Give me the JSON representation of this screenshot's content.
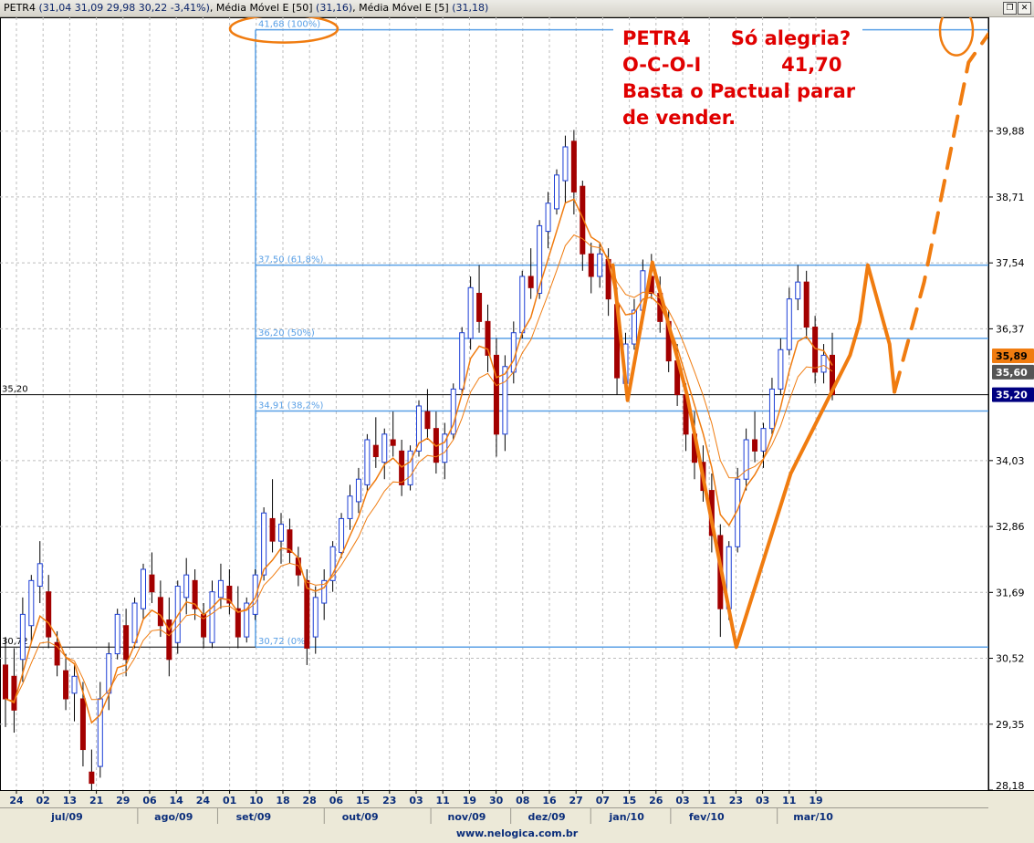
{
  "header": {
    "symbol": "PETR4",
    "quote": "(31,04  31,09  29,98  30,22  -3,41%)",
    "ma1_label": "Média Móvel E [50]",
    "ma1_value": "(31,16)",
    "ma2_label": "Média Móvel E [5]",
    "ma2_value": "(31,18)",
    "restore_icon": "restore-window-icon",
    "close_icon": "close-window-icon"
  },
  "annotation": {
    "lines": [
      "PETR4      Só alegria?",
      "O-C-O-I            41,70",
      "Basta o Pactual parar",
      "de vender."
    ],
    "color": "#e00000"
  },
  "footer": {
    "site": "www.nelogica.com.br"
  },
  "chart_data": {
    "type": "candlestick",
    "ylim": [
      28.18,
      41.9
    ],
    "y_ticks": [
      "39,88",
      "38,71",
      "37,54",
      "36,37",
      "34,03",
      "32,86",
      "31,69",
      "30,52",
      "29,35",
      "28,18"
    ],
    "price_badges": [
      {
        "label": "35,89",
        "bg": "#f07c10",
        "fg": "#000000"
      },
      {
        "label": "35,60",
        "bg": "#555555",
        "fg": "#ffffff"
      },
      {
        "label": "35,20",
        "bg": "#000080",
        "fg": "#ffffff"
      }
    ],
    "left_labels": [
      "35,20",
      "30,72"
    ],
    "x_day_labels": [
      "24",
      "02",
      "13",
      "21",
      "29",
      "06",
      "14",
      "24",
      "01",
      "10",
      "18",
      "28",
      "06",
      "15",
      "23",
      "03",
      "11",
      "19",
      "30",
      "08",
      "16",
      "27",
      "07",
      "15",
      "26",
      "03",
      "11",
      "23",
      "03",
      "11",
      "19"
    ],
    "x_month_labels": [
      "jul/09",
      "ago/09",
      "set/09",
      "out/09",
      "nov/09",
      "dez/09",
      "jan/10",
      "fev/10",
      "mar/10"
    ],
    "horizontal_lines": [
      35.2,
      30.72
    ],
    "fibonacci": {
      "color": "#5aa0e6",
      "levels": [
        {
          "price": 41.68,
          "label": "41,68 (100%)"
        },
        {
          "price": 37.5,
          "label": "37,50 (61,8%)"
        },
        {
          "price": 36.2,
          "label": "36,20 (50%)"
        },
        {
          "price": 34.91,
          "label": "34,91 (38,2%)"
        },
        {
          "price": 30.72,
          "label": "30,72 (0%)"
        }
      ]
    },
    "pattern_lines": [
      {
        "name": "head-and-shoulders-lines",
        "style": "solid",
        "points": [
          [
            0.62,
            37.5
          ],
          [
            0.635,
            35.1
          ],
          [
            0.66,
            37.55
          ],
          [
            0.695,
            35.2
          ],
          [
            0.745,
            30.72
          ],
          [
            0.8,
            33.8
          ],
          [
            0.86,
            35.9
          ],
          [
            0.87,
            36.5
          ],
          [
            0.878,
            37.5
          ],
          [
            0.9,
            36.1
          ],
          [
            0.905,
            35.25
          ]
        ]
      },
      {
        "name": "projection-line",
        "style": "dashed",
        "points": [
          [
            0.905,
            35.25
          ],
          [
            0.935,
            37.2
          ],
          [
            0.98,
            41.1
          ],
          [
            1.0,
            41.6
          ]
        ]
      }
    ],
    "series": [
      {
        "name": "Média Móvel E [50]",
        "color": "#f07c10"
      },
      {
        "name": "Média Móvel E [5]",
        "color": "#f07c10"
      }
    ],
    "ohlc": [
      [
        30.4,
        30.9,
        29.3,
        29.8
      ],
      [
        30.2,
        30.7,
        29.2,
        29.6
      ],
      [
        30.5,
        31.6,
        30.1,
        31.3
      ],
      [
        31.1,
        32.0,
        30.8,
        31.9
      ],
      [
        31.8,
        32.6,
        31.5,
        32.2
      ],
      [
        31.7,
        32.0,
        30.7,
        30.9
      ],
      [
        30.8,
        31.0,
        30.2,
        30.4
      ],
      [
        30.3,
        30.6,
        29.6,
        29.8
      ],
      [
        29.9,
        30.4,
        29.4,
        30.2
      ],
      [
        29.8,
        30.1,
        28.6,
        28.9
      ],
      [
        28.5,
        28.9,
        27.9,
        28.3
      ],
      [
        28.6,
        30.1,
        28.4,
        29.8
      ],
      [
        29.9,
        30.8,
        29.6,
        30.6
      ],
      [
        30.6,
        31.4,
        30.5,
        31.3
      ],
      [
        31.1,
        31.4,
        30.2,
        30.5
      ],
      [
        30.8,
        31.6,
        30.7,
        31.5
      ],
      [
        31.4,
        32.2,
        31.2,
        32.1
      ],
      [
        32.0,
        32.4,
        31.5,
        31.7
      ],
      [
        31.6,
        31.9,
        30.9,
        31.1
      ],
      [
        31.2,
        31.6,
        30.2,
        30.5
      ],
      [
        30.8,
        31.9,
        30.6,
        31.8
      ],
      [
        31.6,
        32.3,
        31.3,
        32.0
      ],
      [
        31.9,
        32.1,
        31.2,
        31.4
      ],
      [
        31.3,
        31.5,
        30.7,
        30.9
      ],
      [
        30.8,
        31.9,
        30.7,
        31.7
      ],
      [
        31.6,
        32.2,
        31.4,
        31.9
      ],
      [
        31.8,
        32.1,
        31.3,
        31.5
      ],
      [
        31.4,
        31.8,
        30.7,
        30.9
      ],
      [
        30.9,
        31.6,
        30.8,
        31.5
      ],
      [
        31.3,
        32.1,
        31.2,
        32.0
      ],
      [
        32.0,
        33.2,
        31.9,
        33.1
      ],
      [
        33.0,
        33.7,
        32.4,
        32.6
      ],
      [
        32.6,
        33.1,
        32.2,
        32.9
      ],
      [
        32.8,
        33.0,
        32.2,
        32.4
      ],
      [
        32.3,
        32.5,
        31.8,
        32.0
      ],
      [
        31.9,
        32.1,
        30.4,
        30.7
      ],
      [
        30.9,
        31.8,
        30.6,
        31.6
      ],
      [
        31.5,
        32.1,
        31.2,
        31.9
      ],
      [
        31.9,
        32.6,
        31.7,
        32.5
      ],
      [
        32.4,
        33.1,
        32.3,
        33.0
      ],
      [
        33.0,
        33.6,
        32.8,
        33.4
      ],
      [
        33.3,
        33.9,
        33.1,
        33.7
      ],
      [
        33.6,
        34.5,
        33.5,
        34.4
      ],
      [
        34.3,
        34.8,
        33.9,
        34.1
      ],
      [
        34.0,
        34.6,
        33.7,
        34.5
      ],
      [
        34.4,
        34.9,
        34.1,
        34.3
      ],
      [
        34.2,
        34.4,
        33.4,
        33.6
      ],
      [
        33.6,
        34.3,
        33.5,
        34.2
      ],
      [
        34.2,
        35.1,
        34.1,
        35.0
      ],
      [
        34.9,
        35.3,
        34.4,
        34.6
      ],
      [
        34.6,
        34.9,
        33.8,
        34.0
      ],
      [
        34.0,
        34.7,
        33.7,
        34.5
      ],
      [
        34.5,
        35.4,
        34.4,
        35.3
      ],
      [
        35.3,
        36.4,
        35.2,
        36.3
      ],
      [
        36.2,
        37.3,
        36.0,
        37.1
      ],
      [
        37.0,
        37.5,
        36.3,
        36.5
      ],
      [
        36.5,
        36.8,
        35.6,
        35.9
      ],
      [
        35.9,
        36.2,
        34.1,
        34.5
      ],
      [
        34.5,
        35.9,
        34.2,
        35.7
      ],
      [
        35.6,
        36.5,
        35.4,
        36.3
      ],
      [
        36.3,
        37.4,
        36.2,
        37.3
      ],
      [
        37.3,
        37.8,
        36.9,
        37.1
      ],
      [
        37.0,
        38.3,
        36.9,
        38.2
      ],
      [
        38.1,
        38.8,
        37.8,
        38.6
      ],
      [
        38.5,
        39.2,
        38.4,
        39.1
      ],
      [
        39.0,
        39.8,
        38.6,
        39.6
      ],
      [
        39.7,
        39.9,
        38.4,
        38.8
      ],
      [
        38.9,
        39.0,
        37.4,
        37.7
      ],
      [
        37.7,
        37.9,
        37.0,
        37.3
      ],
      [
        37.3,
        37.9,
        37.1,
        37.7
      ],
      [
        37.6,
        37.8,
        36.6,
        36.9
      ],
      [
        36.8,
        37.1,
        35.2,
        35.5
      ],
      [
        35.4,
        36.3,
        35.2,
        36.1
      ],
      [
        36.1,
        36.9,
        36.0,
        36.7
      ],
      [
        36.7,
        37.6,
        36.6,
        37.4
      ],
      [
        37.3,
        37.7,
        36.9,
        37.0
      ],
      [
        37.0,
        37.3,
        36.3,
        36.5
      ],
      [
        36.5,
        36.7,
        35.6,
        35.8
      ],
      [
        35.8,
        36.1,
        35.0,
        35.2
      ],
      [
        35.2,
        35.4,
        34.2,
        34.5
      ],
      [
        34.5,
        34.9,
        33.7,
        34.0
      ],
      [
        34.0,
        34.3,
        33.3,
        33.5
      ],
      [
        33.5,
        33.8,
        32.4,
        32.7
      ],
      [
        32.7,
        32.9,
        30.9,
        31.4
      ],
      [
        31.4,
        32.6,
        31.2,
        32.5
      ],
      [
        32.5,
        33.9,
        32.4,
        33.7
      ],
      [
        33.7,
        34.6,
        33.5,
        34.4
      ],
      [
        34.4,
        34.9,
        34.0,
        34.2
      ],
      [
        34.2,
        34.7,
        33.9,
        34.6
      ],
      [
        34.6,
        35.5,
        34.5,
        35.3
      ],
      [
        35.3,
        36.2,
        35.2,
        36.0
      ],
      [
        36.0,
        37.1,
        35.9,
        36.9
      ],
      [
        36.9,
        37.5,
        36.7,
        37.2
      ],
      [
        37.2,
        37.4,
        36.2,
        36.4
      ],
      [
        36.4,
        36.6,
        35.4,
        35.6
      ],
      [
        35.6,
        36.1,
        35.4,
        35.9
      ],
      [
        35.9,
        36.3,
        35.1,
        35.2
      ]
    ]
  }
}
